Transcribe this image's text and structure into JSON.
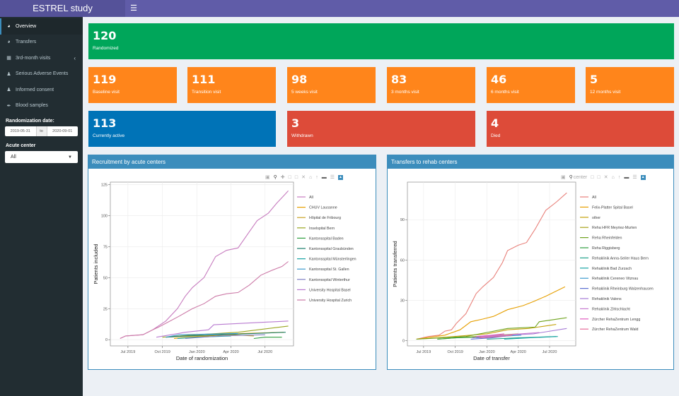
{
  "app": {
    "title": "ESTREL study",
    "menu_icon": "hamburger-icon"
  },
  "sidebar": {
    "items": [
      {
        "label": "Overview",
        "icon": "pie-chart-icon",
        "active": true
      },
      {
        "label": "Transfers",
        "icon": "pie-chart-icon",
        "active": false
      },
      {
        "label": "3rd-month visits",
        "icon": "calendar-icon",
        "active": false,
        "has_submenu": true
      },
      {
        "label": "Serious Adverse Events",
        "icon": "user-icon",
        "active": false
      },
      {
        "label": "Informed consent",
        "icon": "user-icon",
        "active": false
      },
      {
        "label": "Blood samples",
        "icon": "eyedropper-icon",
        "active": false
      }
    ],
    "date_filter": {
      "label": "Randomization date:",
      "start": "2019-05-31",
      "separator": "to",
      "end": "2020-09-01"
    },
    "center_filter": {
      "label": "Acute center",
      "value": "All"
    }
  },
  "value_boxes": {
    "randomized": {
      "value": "120",
      "label": "Randomized",
      "color": "#00a65a"
    },
    "baseline": {
      "value": "119",
      "label": "Baseline visit",
      "color": "#ff851b"
    },
    "transition": {
      "value": "111",
      "label": "Transition visit",
      "color": "#ff851b"
    },
    "weeks5": {
      "value": "98",
      "label": "5 weeks visit",
      "color": "#ff851b"
    },
    "months3": {
      "value": "83",
      "label": "3 months visit",
      "color": "#ff851b"
    },
    "months6": {
      "value": "46",
      "label": "6 months visit",
      "color": "#ff851b"
    },
    "months12": {
      "value": "5",
      "label": "12 months visit",
      "color": "#ff851b"
    },
    "active": {
      "value": "113",
      "label": "Currently active",
      "color": "#0073b7"
    },
    "withdrawn": {
      "value": "3",
      "label": "Withdrawn",
      "color": "#dd4b39"
    },
    "died": {
      "value": "4",
      "label": "Died",
      "color": "#dd4b39"
    }
  },
  "panels": {
    "recruitment": {
      "title": "Recruitment by acute centers"
    },
    "transfers": {
      "title": "Transfers to rehab centers"
    }
  },
  "modebar": [
    "camera-icon",
    "zoom-icon",
    "pan-icon",
    "box-select-icon",
    "lasso-icon",
    "zoom-in-icon",
    "zoom-out-icon",
    "autoscale-icon",
    "reset-axes-icon",
    "spike-lines-icon",
    "hover-closest-icon",
    "hover-compare-icon",
    "plotly-logo-icon"
  ],
  "modebar_overlap_text": "center",
  "chart_data": [
    {
      "type": "line",
      "title": "",
      "xlabel": "Date of randomization",
      "ylabel": "Patients included",
      "xlim": [
        "2019-05-15",
        "2020-09-15"
      ],
      "ylim": [
        -5,
        127
      ],
      "yticks": [
        0,
        25,
        50,
        75,
        100,
        125
      ],
      "xticks": [
        {
          "date": "2019-07-01",
          "label": "Jul 2019"
        },
        {
          "date": "2019-10-01",
          "label": "Oct 2019"
        },
        {
          "date": "2020-01-01",
          "label": "Jan 2020"
        },
        {
          "date": "2020-04-01",
          "label": "Apr 2020"
        },
        {
          "date": "2020-07-01",
          "label": "Jul 2020"
        }
      ],
      "grid": true,
      "legend": "right",
      "series": [
        {
          "name": "All",
          "color": "#c77cbf",
          "points": [
            [
              "2019-06-10",
              1
            ],
            [
              "2019-06-25",
              3
            ],
            [
              "2019-08-10",
              4
            ],
            [
              "2019-09-05",
              8
            ],
            [
              "2019-09-20",
              11
            ],
            [
              "2019-10-10",
              15
            ],
            [
              "2019-11-10",
              25
            ],
            [
              "2019-12-01",
              35
            ],
            [
              "2019-12-20",
              42
            ],
            [
              "2020-01-20",
              50
            ],
            [
              "2020-02-20",
              67
            ],
            [
              "2020-03-20",
              72
            ],
            [
              "2020-04-20",
              74
            ],
            [
              "2020-05-20",
              87
            ],
            [
              "2020-06-10",
              96
            ],
            [
              "2020-07-10",
              102
            ],
            [
              "2020-08-01",
              110
            ],
            [
              "2020-08-20",
              116
            ],
            [
              "2020-09-01",
              120
            ]
          ]
        },
        {
          "name": "CHUV Lausanne",
          "color": "#e69f00",
          "points": [
            [
              "2019-11-01",
              1
            ],
            [
              "2020-02-01",
              3
            ],
            [
              "2020-05-01",
              5
            ],
            [
              "2020-08-20",
              6
            ]
          ]
        },
        {
          "name": "Hôpital de Fribourg",
          "color": "#c9a227",
          "points": [
            [
              "2019-10-10",
              2
            ],
            [
              "2020-01-01",
              3
            ],
            [
              "2020-04-01",
              4
            ],
            [
              "2020-06-01",
              3
            ]
          ]
        },
        {
          "name": "Inselspital Bern",
          "color": "#9aa51f",
          "points": [
            [
              "2019-10-01",
              2
            ],
            [
              "2020-01-01",
              4
            ],
            [
              "2020-04-20",
              6
            ],
            [
              "2020-09-01",
              11
            ]
          ]
        },
        {
          "name": "Kantonsspital Baden",
          "color": "#2e9e3f",
          "points": [
            [
              "2020-06-01",
              1
            ],
            [
              "2020-07-01",
              2
            ],
            [
              "2020-08-15",
              2
            ]
          ]
        },
        {
          "name": "Kantonsspital Graubünden",
          "color": "#1b7f6a",
          "points": [
            [
              "2019-10-10",
              2
            ],
            [
              "2019-12-01",
              3
            ],
            [
              "2020-03-01",
              4
            ],
            [
              "2020-08-25",
              6
            ]
          ]
        },
        {
          "name": "Kantonsspital Münsterlingen",
          "color": "#17a3a3",
          "points": [
            [
              "2019-11-10",
              1
            ],
            [
              "2020-01-01",
              2
            ],
            [
              "2020-04-01",
              3
            ]
          ]
        },
        {
          "name": "Kantonsspital St. Gallen",
          "color": "#3d9bcf",
          "points": [
            [
              "2019-10-10",
              2
            ],
            [
              "2019-11-15",
              4
            ],
            [
              "2020-04-20",
              5
            ]
          ]
        },
        {
          "name": "Kantonsspital Winterthur",
          "color": "#7f7fc4",
          "points": [
            [
              "2019-12-01",
              1
            ],
            [
              "2020-03-01",
              3
            ],
            [
              "2020-07-01",
              4
            ]
          ]
        },
        {
          "name": "University Hospital Basel",
          "color": "#b87ad0",
          "points": [
            [
              "2019-09-15",
              2
            ],
            [
              "2019-12-01",
              6
            ],
            [
              "2020-02-01",
              8
            ],
            [
              "2020-02-15",
              12
            ],
            [
              "2020-09-01",
              15
            ]
          ]
        },
        {
          "name": "University Hospital Zurich",
          "color": "#cc79a7",
          "points": [
            [
              "2019-06-10",
              1
            ],
            [
              "2019-06-25",
              3
            ],
            [
              "2019-08-10",
              4
            ],
            [
              "2019-09-05",
              8
            ],
            [
              "2019-09-20",
              10
            ],
            [
              "2019-10-15",
              14
            ],
            [
              "2019-11-15",
              19
            ],
            [
              "2019-12-20",
              25
            ],
            [
              "2020-01-20",
              29
            ],
            [
              "2020-02-20",
              35
            ],
            [
              "2020-03-20",
              37
            ],
            [
              "2020-04-20",
              38
            ],
            [
              "2020-05-20",
              44
            ],
            [
              "2020-06-20",
              52
            ],
            [
              "2020-07-20",
              56
            ],
            [
              "2020-08-15",
              59
            ],
            [
              "2020-09-01",
              63
            ]
          ]
        }
      ]
    },
    {
      "type": "line",
      "title": "",
      "xlabel": "Date of transfer",
      "ylabel": "Patients transferred",
      "xlim": [
        "2019-05-15",
        "2020-09-15"
      ],
      "ylim": [
        -4,
        118
      ],
      "yticks": [
        0,
        30,
        60,
        90
      ],
      "xticks": [
        {
          "date": "2019-07-01",
          "label": "Jul 2019"
        },
        {
          "date": "2019-10-01",
          "label": "Oct 2019"
        },
        {
          "date": "2020-01-01",
          "label": "Jan 2020"
        },
        {
          "date": "2020-04-01",
          "label": "Apr 2020"
        },
        {
          "date": "2020-07-01",
          "label": "Jul 2020"
        }
      ],
      "grid": true,
      "legend": "right",
      "series": [
        {
          "name": "All",
          "color": "#e8807a",
          "points": [
            [
              "2019-06-10",
              1
            ],
            [
              "2019-07-15",
              3
            ],
            [
              "2019-08-15",
              4
            ],
            [
              "2019-09-01",
              7
            ],
            [
              "2019-09-20",
              8
            ],
            [
              "2019-10-05",
              13
            ],
            [
              "2019-11-01",
              20
            ],
            [
              "2019-12-01",
              35
            ],
            [
              "2019-12-20",
              40
            ],
            [
              "2020-01-20",
              47
            ],
            [
              "2020-02-15",
              58
            ],
            [
              "2020-03-01",
              67
            ],
            [
              "2020-04-01",
              71
            ],
            [
              "2020-04-25",
              73
            ],
            [
              "2020-05-20",
              83
            ],
            [
              "2020-06-20",
              97
            ],
            [
              "2020-07-20",
              103
            ],
            [
              "2020-08-20",
              110
            ]
          ]
        },
        {
          "name": "Felix-Platter Spital Basel",
          "color": "#e69f00",
          "points": [
            [
              "2019-06-10",
              1
            ],
            [
              "2019-09-01",
              4
            ],
            [
              "2019-10-15",
              8
            ],
            [
              "2019-11-15",
              14
            ],
            [
              "2019-12-20",
              16
            ],
            [
              "2020-01-20",
              18
            ],
            [
              "2020-03-01",
              23
            ],
            [
              "2020-04-15",
              26
            ],
            [
              "2020-05-15",
              29
            ],
            [
              "2020-06-20",
              33
            ],
            [
              "2020-08-15",
              40
            ]
          ]
        },
        {
          "name": "other",
          "color": "#c4a20b",
          "points": [
            [
              "2019-06-10",
              1
            ],
            [
              "2019-08-10",
              2
            ],
            [
              "2020-01-01",
              5
            ],
            [
              "2020-03-01",
              8
            ],
            [
              "2020-05-01",
              9
            ],
            [
              "2020-07-20",
              12
            ]
          ]
        },
        {
          "name": "Reha HFR Meyriez-Murten",
          "color": "#a9a41a",
          "points": [
            [
              "2019-08-10",
              1
            ],
            [
              "2019-10-01",
              2
            ],
            [
              "2020-02-01",
              4
            ],
            [
              "2020-04-01",
              5
            ]
          ]
        },
        {
          "name": "Reha Rheinfelden",
          "color": "#6fa31f",
          "points": [
            [
              "2019-06-10",
              1
            ],
            [
              "2019-11-01",
              3
            ],
            [
              "2020-01-01",
              6
            ],
            [
              "2020-03-01",
              9
            ],
            [
              "2020-05-20",
              10
            ],
            [
              "2020-06-01",
              14
            ],
            [
              "2020-08-20",
              17
            ]
          ]
        },
        {
          "name": "Reha Riggisberg",
          "color": "#2e9e3f",
          "points": [
            [
              "2019-08-10",
              1
            ],
            [
              "2019-10-01",
              2
            ],
            [
              "2020-02-01",
              3
            ]
          ]
        },
        {
          "name": "Rehaklinik Anna-Seiler Haus Bern",
          "color": "#1ea188",
          "points": [
            [
              "2020-01-01",
              1
            ],
            [
              "2020-04-01",
              2
            ],
            [
              "2020-07-20",
              3
            ]
          ]
        },
        {
          "name": "Rehaklinik Bad Zurzach",
          "color": "#17a3a3",
          "points": [
            [
              "2020-02-20",
              1
            ],
            [
              "2020-05-01",
              2
            ],
            [
              "2020-07-25",
              3
            ]
          ]
        },
        {
          "name": "Rehaklinik Cereneo Vitznau",
          "color": "#3d9bcf",
          "points": [
            [
              "2019-12-01",
              2
            ],
            [
              "2020-02-01",
              3
            ],
            [
              "2020-04-10",
              4
            ]
          ]
        },
        {
          "name": "Rehaklinik Rheinburg Walzenhausen",
          "color": "#5b6fd1",
          "points": [
            [
              "2019-11-15",
              1
            ],
            [
              "2020-01-15",
              2
            ],
            [
              "2020-03-15",
              4
            ]
          ]
        },
        {
          "name": "Rehaklinik Valens",
          "color": "#a57ad6",
          "points": [
            [
              "2019-11-20",
              2
            ],
            [
              "2020-03-01",
              4
            ],
            [
              "2020-05-15",
              5
            ],
            [
              "2020-08-20",
              9
            ]
          ]
        },
        {
          "name": "Rehaklinik Zihlschlacht",
          "color": "#c77cd0",
          "points": [
            [
              "2019-12-15",
              3
            ],
            [
              "2020-02-15",
              4
            ],
            [
              "2020-06-01",
              6
            ]
          ]
        },
        {
          "name": "Zürcher RehaZentrum Lengg",
          "color": "#e05bc0",
          "points": [
            [
              "2019-12-01",
              3
            ],
            [
              "2020-01-15",
              4
            ],
            [
              "2020-02-20",
              5
            ]
          ]
        },
        {
          "name": "Zürcher RehaZentrum Wald",
          "color": "#e76b9a",
          "points": [
            [
              "2019-12-10",
              2
            ],
            [
              "2020-02-01",
              3
            ],
            [
              "2020-03-15",
              4
            ]
          ]
        }
      ]
    }
  ]
}
